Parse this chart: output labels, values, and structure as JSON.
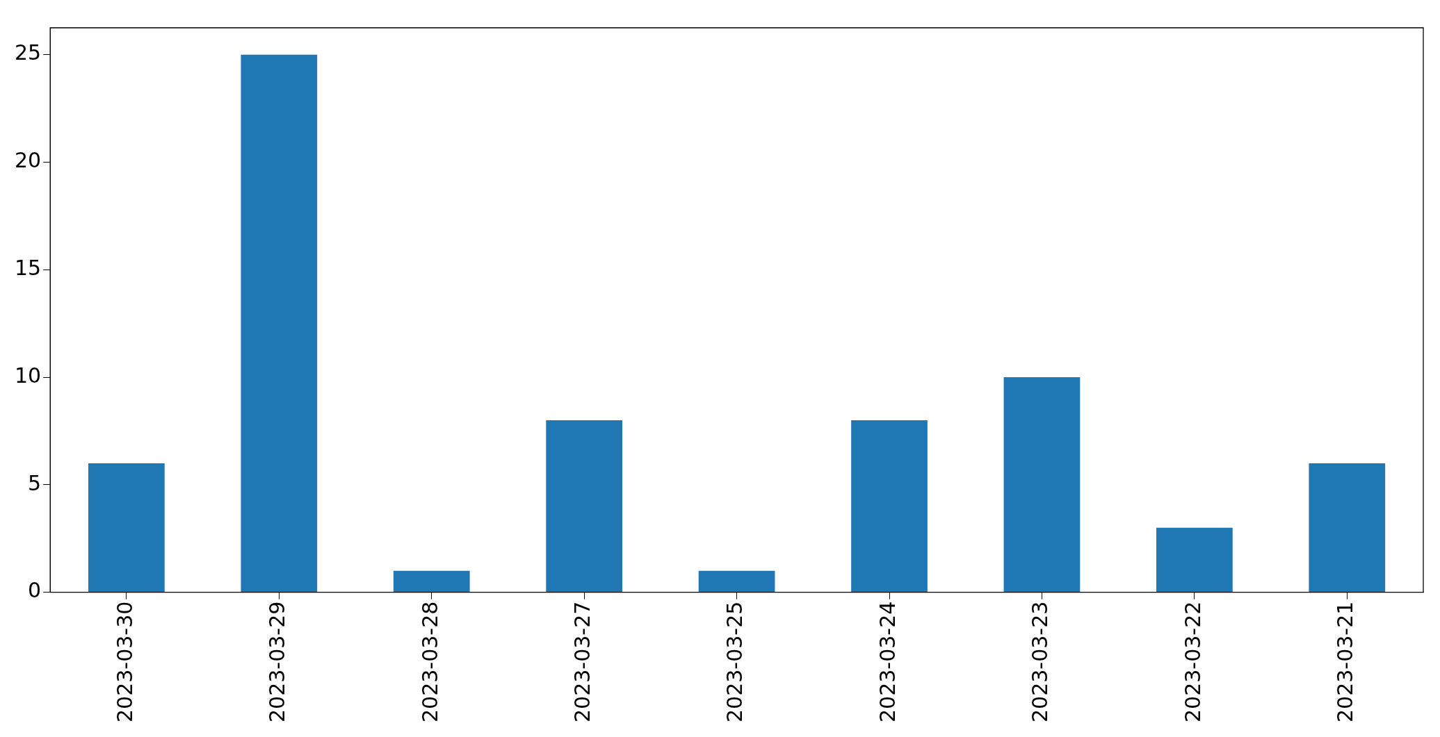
{
  "chart_data": {
    "type": "bar",
    "categories": [
      "2023-03-30",
      "2023-03-29",
      "2023-03-28",
      "2023-03-27",
      "2023-03-25",
      "2023-03-24",
      "2023-03-23",
      "2023-03-22",
      "2023-03-21"
    ],
    "values": [
      6,
      25,
      1,
      8,
      1,
      8,
      10,
      3,
      6
    ],
    "color": "#1f77b4",
    "ylim": [
      0,
      26.25
    ],
    "yticks": [
      0,
      5,
      10,
      15,
      20,
      25
    ],
    "grid": false,
    "legend": false
  }
}
